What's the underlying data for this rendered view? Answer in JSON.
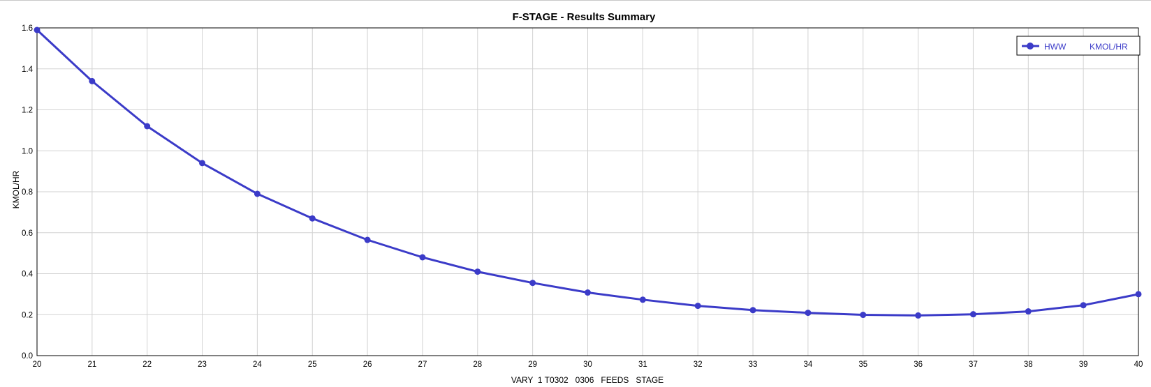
{
  "chart_data": {
    "type": "line",
    "title": "F-STAGE - Results Summary",
    "xlabel": "VARY  1 T0302   0306   FEEDS   STAGE",
    "ylabel": "KMOL/HR",
    "xlim": [
      20,
      40
    ],
    "ylim": [
      0.0,
      1.6
    ],
    "x_ticks": [
      "20",
      "21",
      "22",
      "23",
      "24",
      "25",
      "26",
      "27",
      "28",
      "29",
      "30",
      "31",
      "32",
      "33",
      "34",
      "35",
      "36",
      "37",
      "38",
      "39",
      "40"
    ],
    "y_ticks": [
      "0.0",
      "0.2",
      "0.4",
      "0.6",
      "0.8",
      "1.0",
      "1.2",
      "1.4",
      "1.6"
    ],
    "grid": true,
    "legend_position": "top-right",
    "series": [
      {
        "name": "HWW",
        "unit": "KMOL/HR",
        "color": "#3b3bc8",
        "x": [
          20,
          21,
          22,
          23,
          24,
          25,
          26,
          27,
          28,
          29,
          30,
          31,
          32,
          33,
          34,
          35,
          36,
          37,
          38,
          39,
          40
        ],
        "values": [
          1.59,
          1.34,
          1.12,
          0.94,
          0.79,
          0.67,
          0.565,
          0.48,
          0.41,
          0.355,
          0.308,
          0.273,
          0.243,
          0.222,
          0.209,
          0.199,
          0.196,
          0.202,
          0.216,
          0.246,
          0.3
        ]
      }
    ]
  }
}
